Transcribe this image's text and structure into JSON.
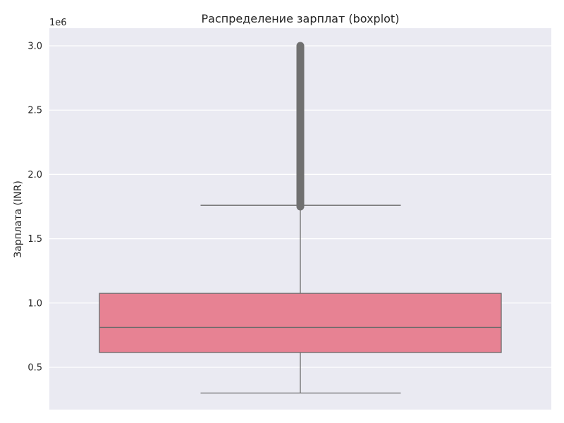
{
  "chart_data": {
    "type": "boxplot",
    "title": "Распределение зарплат (boxplot)",
    "xlabel": "",
    "ylabel": "Зарплата (INR)",
    "offset_label": "1e6",
    "scale": 1000000,
    "ylim": [
      0.2,
      3.1
    ],
    "yticks": [
      0.5,
      1.0,
      1.5,
      2.0,
      2.5,
      3.0
    ],
    "ytick_labels": [
      "0.5",
      "1.0",
      "1.5",
      "2.0",
      "2.5",
      "3.0"
    ],
    "grid": true,
    "box": {
      "whisker_low": 0.3,
      "q1": 0.615,
      "median": 0.81,
      "q3": 1.075,
      "whisker_high": 1.76,
      "outliers_min": 1.75,
      "outliers_max": 3.0
    },
    "colors": {
      "background": "#eaeaf2",
      "grid": "#ffffff",
      "box_fill": "#e78293",
      "line": "#6b6b6b",
      "outlier": "#707070"
    }
  }
}
